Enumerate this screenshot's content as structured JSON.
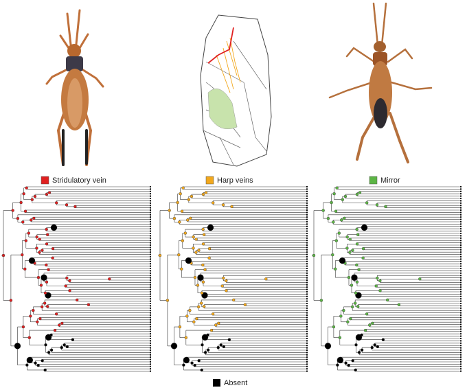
{
  "legend": [
    {
      "label": "Stridulatory vein",
      "color": "#e02020"
    },
    {
      "label": "Harp veins",
      "color": "#f2a81d"
    },
    {
      "label": "Mirror",
      "color": "#5cb545"
    }
  ],
  "absent": {
    "label": "Absent",
    "color": "#000000"
  }
}
